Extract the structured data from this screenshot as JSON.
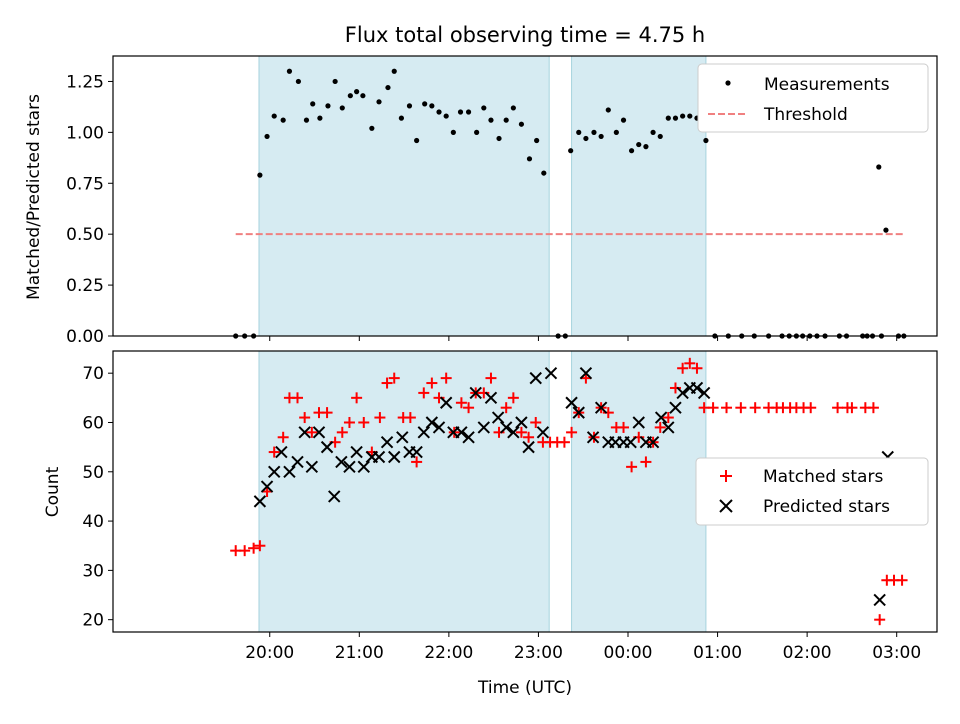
{
  "chart_data": [
    {
      "type": "scatter",
      "title": "Flux total observing time = 4.75 h",
      "ylabel": "Matched/Predicted stars",
      "xlabel": "",
      "x_unit": "hours after 19:00 UTC",
      "xlim": [
        -0.75,
        8.45
      ],
      "ylim": [
        0,
        1.375
      ],
      "ytick_labels": [
        "0.00",
        "0.25",
        "0.50",
        "0.75",
        "1.00",
        "1.25"
      ],
      "yticks": [
        0,
        0.25,
        0.5,
        0.75,
        1.0,
        1.25
      ],
      "observing_windows": [
        [
          0.88,
          4.12
        ],
        [
          4.37,
          5.87
        ]
      ],
      "threshold": {
        "name": "Threshold",
        "y": 0.5,
        "x_from": 0.62,
        "x_to": 8.07,
        "color": "#f08080"
      },
      "legend": {
        "placement": "top-right",
        "entries": [
          "Measurements",
          "Threshold"
        ]
      },
      "series": [
        {
          "name": "Measurements",
          "color": "#000000",
          "points": [
            [
              0.62,
              0
            ],
            [
              0.72,
              0
            ],
            [
              0.82,
              0
            ],
            [
              0.89,
              0.79
            ],
            [
              0.97,
              0.98
            ],
            [
              1.05,
              1.08
            ],
            [
              1.15,
              1.06
            ],
            [
              1.22,
              1.3
            ],
            [
              1.32,
              1.25
            ],
            [
              1.41,
              1.06
            ],
            [
              1.48,
              1.14
            ],
            [
              1.56,
              1.07
            ],
            [
              1.65,
              1.13
            ],
            [
              1.73,
              1.25
            ],
            [
              1.81,
              1.12
            ],
            [
              1.9,
              1.18
            ],
            [
              1.97,
              1.2
            ],
            [
              2.04,
              1.18
            ],
            [
              2.14,
              1.02
            ],
            [
              2.22,
              1.15
            ],
            [
              2.32,
              1.22
            ],
            [
              2.39,
              1.3
            ],
            [
              2.47,
              1.07
            ],
            [
              2.56,
              1.13
            ],
            [
              2.64,
              0.96
            ],
            [
              2.73,
              1.14
            ],
            [
              2.81,
              1.13
            ],
            [
              2.89,
              1.1
            ],
            [
              2.97,
              1.08
            ],
            [
              3.05,
              1.0
            ],
            [
              3.13,
              1.1
            ],
            [
              3.22,
              1.1
            ],
            [
              3.31,
              1.0
            ],
            [
              3.39,
              1.12
            ],
            [
              3.47,
              1.06
            ],
            [
              3.56,
              0.97
            ],
            [
              3.64,
              1.06
            ],
            [
              3.72,
              1.12
            ],
            [
              3.81,
              1.04
            ],
            [
              3.9,
              0.87
            ],
            [
              3.98,
              0.96
            ],
            [
              4.06,
              0.8
            ],
            [
              4.22,
              0
            ],
            [
              4.3,
              0
            ],
            [
              4.36,
              0.91
            ],
            [
              4.45,
              1.0
            ],
            [
              4.53,
              0.97
            ],
            [
              4.62,
              1.0
            ],
            [
              4.7,
              0.98
            ],
            [
              4.78,
              1.11
            ],
            [
              4.87,
              1.0
            ],
            [
              4.95,
              1.06
            ],
            [
              5.04,
              0.91
            ],
            [
              5.12,
              0.94
            ],
            [
              5.2,
              0.93
            ],
            [
              5.28,
              1.0
            ],
            [
              5.36,
              0.98
            ],
            [
              5.45,
              1.07
            ],
            [
              5.53,
              1.07
            ],
            [
              5.61,
              1.08
            ],
            [
              5.69,
              1.08
            ],
            [
              5.77,
              1.07
            ],
            [
              5.87,
              0.96
            ],
            [
              5.97,
              0
            ],
            [
              6.12,
              0
            ],
            [
              6.27,
              0
            ],
            [
              6.41,
              0
            ],
            [
              6.57,
              0
            ],
            [
              6.72,
              0
            ],
            [
              6.8,
              0
            ],
            [
              6.88,
              0
            ],
            [
              6.95,
              0
            ],
            [
              7.03,
              0
            ],
            [
              7.11,
              0
            ],
            [
              7.2,
              0
            ],
            [
              7.36,
              0
            ],
            [
              7.44,
              0
            ],
            [
              7.62,
              0
            ],
            [
              7.67,
              0
            ],
            [
              7.73,
              0
            ],
            [
              7.83,
              0
            ],
            [
              7.8,
              0.83
            ],
            [
              7.88,
              0.52
            ],
            [
              8.02,
              0
            ],
            [
              8.08,
              0
            ]
          ]
        }
      ]
    },
    {
      "type": "scatter",
      "title": "",
      "xlabel": "Time (UTC)",
      "ylabel": "Count",
      "x_unit": "hours after 19:00 UTC",
      "xlim": [
        -0.75,
        8.45
      ],
      "ylim": [
        17.5,
        74.5
      ],
      "xticks": [
        1,
        2,
        3,
        4,
        5,
        6,
        7,
        8
      ],
      "xtick_labels": [
        "20:00",
        "21:00",
        "22:00",
        "23:00",
        "00:00",
        "01:00",
        "02:00",
        "03:00"
      ],
      "yticks": [
        20,
        30,
        40,
        50,
        60,
        70
      ],
      "ytick_labels": [
        "20",
        "30",
        "40",
        "50",
        "60",
        "70"
      ],
      "observing_windows": [
        [
          0.88,
          4.12
        ],
        [
          4.37,
          5.87
        ]
      ],
      "legend": {
        "placement": "center-right",
        "entries": [
          "Matched stars",
          "Predicted stars"
        ]
      },
      "series": [
        {
          "name": "Matched stars",
          "color": "#ff0000",
          "marker": "plus",
          "points": [
            [
              0.62,
              34
            ],
            [
              0.72,
              34
            ],
            [
              0.82,
              34.5
            ],
            [
              0.89,
              35
            ],
            [
              0.97,
              46
            ],
            [
              1.05,
              54
            ],
            [
              1.15,
              57
            ],
            [
              1.22,
              65
            ],
            [
              1.31,
              65
            ],
            [
              1.39,
              61
            ],
            [
              1.47,
              58
            ],
            [
              1.55,
              62
            ],
            [
              1.64,
              62
            ],
            [
              1.73,
              56
            ],
            [
              1.81,
              58
            ],
            [
              1.89,
              60
            ],
            [
              1.97,
              65
            ],
            [
              2.05,
              60
            ],
            [
              2.14,
              54
            ],
            [
              2.23,
              61
            ],
            [
              2.31,
              68
            ],
            [
              2.39,
              69
            ],
            [
              2.49,
              61
            ],
            [
              2.57,
              61
            ],
            [
              2.64,
              52
            ],
            [
              2.72,
              66
            ],
            [
              2.81,
              68
            ],
            [
              2.89,
              65
            ],
            [
              2.97,
              69
            ],
            [
              3.06,
              58
            ],
            [
              3.14,
              64
            ],
            [
              3.22,
              63
            ],
            [
              3.3,
              66
            ],
            [
              3.39,
              66
            ],
            [
              3.47,
              69
            ],
            [
              3.56,
              58
            ],
            [
              3.64,
              63
            ],
            [
              3.72,
              65
            ],
            [
              3.81,
              58
            ],
            [
              3.89,
              57
            ],
            [
              3.97,
              60
            ],
            [
              4.05,
              56
            ],
            [
              4.13,
              56
            ],
            [
              4.21,
              56
            ],
            [
              4.29,
              56
            ],
            [
              4.37,
              58
            ],
            [
              4.45,
              62
            ],
            [
              4.53,
              69
            ],
            [
              4.62,
              57
            ],
            [
              4.7,
              63
            ],
            [
              4.78,
              62
            ],
            [
              4.87,
              59
            ],
            [
              4.95,
              59
            ],
            [
              5.04,
              51
            ],
            [
              5.12,
              57
            ],
            [
              5.2,
              52
            ],
            [
              5.28,
              56
            ],
            [
              5.36,
              59
            ],
            [
              5.45,
              61
            ],
            [
              5.53,
              67
            ],
            [
              5.61,
              71
            ],
            [
              5.69,
              72
            ],
            [
              5.77,
              71
            ],
            [
              5.85,
              63
            ],
            [
              5.95,
              63
            ],
            [
              6.1,
              63
            ],
            [
              6.26,
              63
            ],
            [
              6.42,
              63
            ],
            [
              6.57,
              63
            ],
            [
              6.66,
              63
            ],
            [
              6.73,
              63
            ],
            [
              6.81,
              63
            ],
            [
              6.88,
              63
            ],
            [
              6.96,
              63
            ],
            [
              7.04,
              63
            ],
            [
              7.34,
              63
            ],
            [
              7.45,
              63
            ],
            [
              7.5,
              63
            ],
            [
              7.65,
              63
            ],
            [
              7.74,
              63
            ],
            [
              7.81,
              20
            ],
            [
              7.89,
              28
            ],
            [
              7.97,
              28
            ],
            [
              8.06,
              28
            ]
          ]
        },
        {
          "name": "Predicted stars",
          "color": "#000000",
          "marker": "x",
          "points": [
            [
              0.89,
              44
            ],
            [
              0.97,
              47
            ],
            [
              1.05,
              50
            ],
            [
              1.13,
              54
            ],
            [
              1.22,
              50
            ],
            [
              1.31,
              52
            ],
            [
              1.39,
              58
            ],
            [
              1.47,
              51
            ],
            [
              1.55,
              58
            ],
            [
              1.64,
              55
            ],
            [
              1.72,
              45
            ],
            [
              1.8,
              52
            ],
            [
              1.89,
              51
            ],
            [
              1.97,
              54
            ],
            [
              2.05,
              51
            ],
            [
              2.14,
              53
            ],
            [
              2.22,
              53
            ],
            [
              2.31,
              56
            ],
            [
              2.39,
              53
            ],
            [
              2.48,
              57
            ],
            [
              2.56,
              54
            ],
            [
              2.64,
              54
            ],
            [
              2.72,
              58
            ],
            [
              2.81,
              60
            ],
            [
              2.89,
              59
            ],
            [
              2.97,
              64
            ],
            [
              3.05,
              58
            ],
            [
              3.14,
              58
            ],
            [
              3.22,
              57
            ],
            [
              3.3,
              66
            ],
            [
              3.39,
              59
            ],
            [
              3.47,
              65
            ],
            [
              3.55,
              61
            ],
            [
              3.64,
              59
            ],
            [
              3.72,
              58
            ],
            [
              3.81,
              60
            ],
            [
              3.89,
              55
            ],
            [
              3.97,
              69
            ],
            [
              4.05,
              58
            ],
            [
              4.14,
              70
            ],
            [
              4.37,
              64
            ],
            [
              4.45,
              62
            ],
            [
              4.53,
              70
            ],
            [
              4.61,
              57
            ],
            [
              4.7,
              63
            ],
            [
              4.78,
              56
            ],
            [
              4.86,
              56
            ],
            [
              4.95,
              56
            ],
            [
              5.03,
              56
            ],
            [
              5.12,
              60
            ],
            [
              5.2,
              56
            ],
            [
              5.28,
              56
            ],
            [
              5.37,
              61
            ],
            [
              5.45,
              59
            ],
            [
              5.53,
              63
            ],
            [
              5.61,
              66
            ],
            [
              5.69,
              67
            ],
            [
              5.77,
              67
            ],
            [
              5.85,
              66
            ],
            [
              7.81,
              24
            ],
            [
              7.9,
              53
            ]
          ]
        }
      ]
    }
  ]
}
